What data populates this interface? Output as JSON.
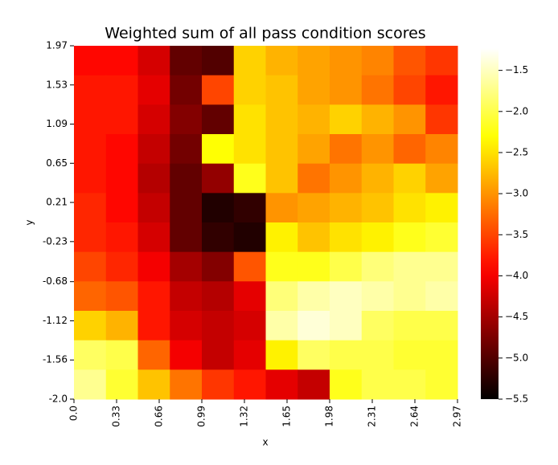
{
  "chart_data": {
    "type": "heatmap",
    "title": "Weighted sum of all pass condition scores",
    "xlabel": "x",
    "ylabel": "y",
    "colormap": "hot",
    "xlim": [
      0,
      2.97
    ],
    "ylim": [
      -2.0,
      1.97
    ],
    "xticks": [
      {
        "value": 0,
        "label": "0.0"
      },
      0.33,
      0.66,
      0.99,
      1.32,
      1.65,
      1.98,
      2.31,
      2.64,
      2.97
    ],
    "yticks": [
      1.97,
      1.53,
      1.09,
      0.65,
      0.21,
      -0.23,
      -0.68,
      -1.12,
      -1.56,
      {
        "value": -2,
        "label": "-2.0"
      }
    ],
    "zlim": [
      -5.5,
      -1.23
    ],
    "zticks": [
      {
        "value": -1.5,
        "label": "−1.5"
      },
      {
        "value": -2,
        "label": "−2.0"
      },
      {
        "value": -2.5,
        "label": "−2.5"
      },
      {
        "value": -3,
        "label": "−3.0"
      },
      {
        "value": -3.5,
        "label": "−3.5"
      },
      {
        "value": -4,
        "label": "−4.0"
      },
      {
        "value": -4.5,
        "label": "−4.5"
      },
      {
        "value": -5,
        "label": "−5.0"
      },
      {
        "value": -5.5,
        "label": "−5.5"
      }
    ],
    "z": [
      [
        -3.9,
        -3.9,
        -4.2,
        -4.9,
        -5.0,
        -2.6,
        -2.8,
        -2.9,
        -3.0,
        -3.1,
        -3.4,
        -3.6
      ],
      [
        -3.8,
        -3.8,
        -4.1,
        -4.8,
        -3.5,
        -2.6,
        -2.7,
        -2.9,
        -3.0,
        -3.2,
        -3.5,
        -3.8
      ],
      [
        -3.8,
        -3.8,
        -4.2,
        -4.7,
        -4.9,
        -2.5,
        -2.7,
        -2.8,
        -2.6,
        -2.8,
        -3.0,
        -3.6
      ],
      [
        -3.8,
        -3.9,
        -4.3,
        -4.8,
        -2.3,
        -2.5,
        -2.7,
        -2.9,
        -3.2,
        -3.0,
        -3.3,
        -3.1
      ],
      [
        -3.8,
        -3.9,
        -4.4,
        -4.9,
        -4.6,
        -2.2,
        -2.7,
        -3.2,
        -3.0,
        -2.8,
        -2.6,
        -2.9
      ],
      [
        -3.7,
        -3.9,
        -4.3,
        -4.9,
        -5.3,
        -5.2,
        -3.0,
        -2.9,
        -2.8,
        -2.7,
        -2.5,
        -2.4
      ],
      [
        -3.7,
        -3.8,
        -4.2,
        -4.9,
        -5.2,
        -5.3,
        -2.4,
        -2.7,
        -2.5,
        -2.4,
        -2.2,
        -2.1
      ],
      [
        -3.5,
        -3.7,
        -4.0,
        -4.5,
        -4.7,
        -3.4,
        -2.2,
        -2.2,
        -2.0,
        -1.8,
        -1.7,
        -1.7
      ],
      [
        -3.3,
        -3.4,
        -3.8,
        -4.3,
        -4.4,
        -4.1,
        -1.8,
        -1.6,
        -1.5,
        -1.6,
        -1.7,
        -1.6
      ],
      [
        -2.6,
        -2.8,
        -3.8,
        -4.2,
        -4.3,
        -4.2,
        -1.6,
        -1.4,
        -1.5,
        -1.9,
        -2.0,
        -2.0
      ],
      [
        -1.9,
        -2.0,
        -3.3,
        -4.0,
        -4.3,
        -4.1,
        -2.4,
        -1.9,
        -2.0,
        -2.0,
        -2.1,
        -2.1
      ],
      [
        -1.7,
        -2.1,
        -2.7,
        -3.2,
        -3.6,
        -3.8,
        -4.1,
        -4.3,
        -2.2,
        -2.0,
        -2.0,
        -2.1
      ]
    ]
  }
}
